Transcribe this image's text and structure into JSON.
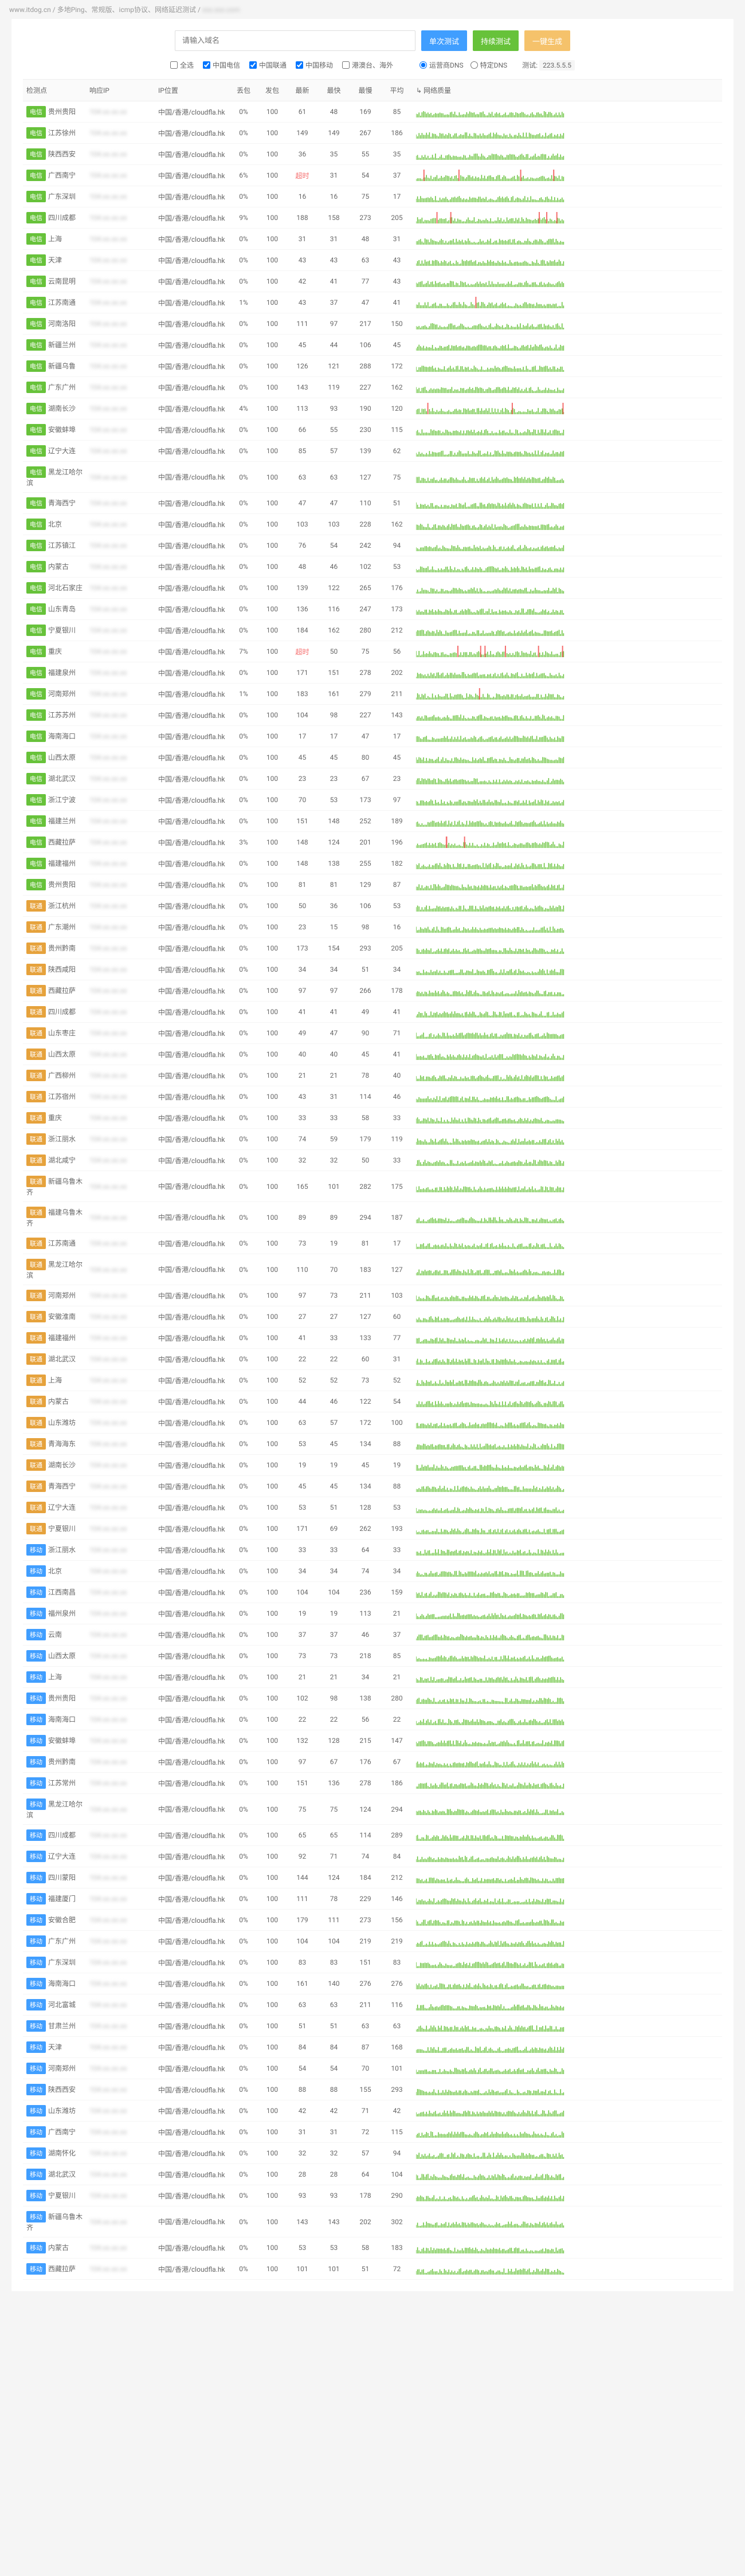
{
  "breadcrumb": {
    "site": "www.itdog.cn",
    "sep": "/",
    "p1": "多地Ping、常规版、icmp协议、网络延迟测试",
    "p2": "blurred"
  },
  "search": {
    "placeholder": "请输入域名"
  },
  "buttons": {
    "once": "单次测试",
    "cont": "持续测试",
    "share": "一键生成"
  },
  "filters": {
    "all": "全选",
    "dx": "中国电信",
    "lt": "中国联通",
    "yd": "中国移动",
    "gat": "港澳台、海外",
    "carrier_dns": "运营商DNS",
    "specific_dns": "特定DNS",
    "dns_label": "测试:",
    "dns_val": "223.5.5.5"
  },
  "headers": {
    "node": "检测点",
    "ip": "响应IP",
    "loc": "IP位置",
    "loss": "丢包",
    "sent": "发包",
    "recent": "最新",
    "fast": "最快",
    "slow": "最慢",
    "avg": "平均",
    "quality": "↳ 网络质量"
  },
  "ip_location": "中国/香港/cloudfla.hk",
  "colors": {
    "green": "#67c23a",
    "red": "#f56c6c"
  },
  "rows": [
    {
      "isp": "dx",
      "name": "贵州贵阳",
      "loss": "0%",
      "sent": 100,
      "recent": 61,
      "fast": 48,
      "slow": 169,
      "avg": 85,
      "redspikes": 0
    },
    {
      "isp": "dx",
      "name": "江苏徐州",
      "loss": "0%",
      "sent": 100,
      "recent": 149,
      "fast": 149,
      "slow": 267,
      "avg": 186,
      "redspikes": 0
    },
    {
      "isp": "dx",
      "name": "陕西西安",
      "loss": "0%",
      "sent": 100,
      "recent": 36,
      "fast": 35,
      "slow": 55,
      "avg": 35,
      "redspikes": 0
    },
    {
      "isp": "dx",
      "name": "广西南宁",
      "loss": "6%",
      "sent": 100,
      "recent": "超时",
      "fast": 31,
      "slow": 54,
      "avg": 37,
      "redspikes": 4
    },
    {
      "isp": "dx",
      "name": "广东深圳",
      "loss": "0%",
      "sent": 100,
      "recent": 16,
      "fast": 16,
      "slow": 75,
      "avg": 17,
      "redspikes": 0
    },
    {
      "isp": "dx",
      "name": "四川成都",
      "loss": "9%",
      "sent": 100,
      "recent": 188,
      "fast": 158,
      "slow": 273,
      "avg": 205,
      "redspikes": 5
    },
    {
      "isp": "dx",
      "name": "上海",
      "loss": "0%",
      "sent": 100,
      "recent": 31,
      "fast": 31,
      "slow": 48,
      "avg": 31,
      "redspikes": 0
    },
    {
      "isp": "dx",
      "name": "天津",
      "loss": "0%",
      "sent": 100,
      "recent": 43,
      "fast": 43,
      "slow": 63,
      "avg": 43,
      "redspikes": 0
    },
    {
      "isp": "dx",
      "name": "云南昆明",
      "loss": "0%",
      "sent": 100,
      "recent": 42,
      "fast": 41,
      "slow": 77,
      "avg": 43,
      "redspikes": 0
    },
    {
      "isp": "dx",
      "name": "江苏南通",
      "loss": "1%",
      "sent": 100,
      "recent": 43,
      "fast": 37,
      "slow": 47,
      "avg": 41,
      "redspikes": 1
    },
    {
      "isp": "dx",
      "name": "河南洛阳",
      "loss": "0%",
      "sent": 100,
      "recent": 111,
      "fast": 97,
      "slow": 217,
      "avg": 150,
      "redspikes": 0
    },
    {
      "isp": "dx",
      "name": "新疆兰州",
      "loss": "0%",
      "sent": 100,
      "recent": 45,
      "fast": 44,
      "slow": 106,
      "avg": 45,
      "redspikes": 0
    },
    {
      "isp": "dx",
      "name": "新疆乌鲁",
      "loss": "0%",
      "sent": 100,
      "recent": 126,
      "fast": 121,
      "slow": 288,
      "avg": 172,
      "redspikes": 0
    },
    {
      "isp": "dx",
      "name": "广东广州",
      "loss": "0%",
      "sent": 100,
      "recent": 143,
      "fast": 119,
      "slow": 227,
      "avg": 162,
      "redspikes": 0
    },
    {
      "isp": "dx",
      "name": "湖南长沙",
      "loss": "4%",
      "sent": 100,
      "recent": 113,
      "fast": 93,
      "slow": 190,
      "avg": 120,
      "redspikes": 3
    },
    {
      "isp": "dx",
      "name": "安徽蚌埠",
      "loss": "0%",
      "sent": 100,
      "recent": 66,
      "fast": 55,
      "slow": 230,
      "avg": 115,
      "redspikes": 0
    },
    {
      "isp": "dx",
      "name": "辽宁大连",
      "loss": "0%",
      "sent": 100,
      "recent": 85,
      "fast": 57,
      "slow": 139,
      "avg": 62,
      "redspikes": 0
    },
    {
      "isp": "dx",
      "name": "黑龙江哈尔滨",
      "loss": "0%",
      "sent": 100,
      "recent": 63,
      "fast": 63,
      "slow": 127,
      "avg": 75,
      "redspikes": 0
    },
    {
      "isp": "dx",
      "name": "青海西宁",
      "loss": "0%",
      "sent": 100,
      "recent": 47,
      "fast": 47,
      "slow": 110,
      "avg": 51,
      "redspikes": 0
    },
    {
      "isp": "dx",
      "name": "北京",
      "loss": "0%",
      "sent": 100,
      "recent": 103,
      "fast": 103,
      "slow": 228,
      "avg": 162,
      "redspikes": 0
    },
    {
      "isp": "dx",
      "name": "江苏镇江",
      "loss": "0%",
      "sent": 100,
      "recent": 76,
      "fast": 54,
      "slow": 242,
      "avg": 94,
      "redspikes": 0
    },
    {
      "isp": "dx",
      "name": "内蒙古",
      "loss": "0%",
      "sent": 100,
      "recent": 48,
      "fast": 46,
      "slow": 102,
      "avg": 53,
      "redspikes": 0
    },
    {
      "isp": "dx",
      "name": "河北石家庄",
      "loss": "0%",
      "sent": 100,
      "recent": 139,
      "fast": 122,
      "slow": 265,
      "avg": 176,
      "redspikes": 0
    },
    {
      "isp": "dx",
      "name": "山东青岛",
      "loss": "0%",
      "sent": 100,
      "recent": 136,
      "fast": 116,
      "slow": 247,
      "avg": 173,
      "redspikes": 0
    },
    {
      "isp": "dx",
      "name": "宁夏银川",
      "loss": "0%",
      "sent": 100,
      "recent": 184,
      "fast": 162,
      "slow": 280,
      "avg": 212,
      "redspikes": 0
    },
    {
      "isp": "dx",
      "name": "重庆",
      "loss": "7%",
      "sent": 100,
      "recent": "超时",
      "fast": 50,
      "slow": 75,
      "avg": 56,
      "redspikes": 6
    },
    {
      "isp": "dx",
      "name": "福建泉州",
      "loss": "0%",
      "sent": 100,
      "recent": 171,
      "fast": 151,
      "slow": 278,
      "avg": 202,
      "redspikes": 0
    },
    {
      "isp": "dx",
      "name": "河南郑州",
      "loss": "1%",
      "sent": 100,
      "recent": 183,
      "fast": 161,
      "slow": 279,
      "avg": 211,
      "redspikes": 1
    },
    {
      "isp": "dx",
      "name": "江苏苏州",
      "loss": "0%",
      "sent": 100,
      "recent": 104,
      "fast": 98,
      "slow": 227,
      "avg": 143,
      "redspikes": 0
    },
    {
      "isp": "dx",
      "name": "海南海口",
      "loss": "0%",
      "sent": 100,
      "recent": 17,
      "fast": 17,
      "slow": 47,
      "avg": 17,
      "redspikes": 0
    },
    {
      "isp": "dx",
      "name": "山西太原",
      "loss": "0%",
      "sent": 100,
      "recent": 45,
      "fast": 45,
      "slow": 80,
      "avg": 45,
      "redspikes": 0
    },
    {
      "isp": "dx",
      "name": "湖北武汉",
      "loss": "0%",
      "sent": 100,
      "recent": 23,
      "fast": 23,
      "slow": 67,
      "avg": 23,
      "redspikes": 0
    },
    {
      "isp": "dx",
      "name": "浙江宁波",
      "loss": "0%",
      "sent": 100,
      "recent": 70,
      "fast": 53,
      "slow": 173,
      "avg": 97,
      "redspikes": 0
    },
    {
      "isp": "dx",
      "name": "福建兰州",
      "loss": "0%",
      "sent": 100,
      "recent": 151,
      "fast": 148,
      "slow": 252,
      "avg": 189,
      "redspikes": 0
    },
    {
      "isp": "dx",
      "name": "西藏拉萨",
      "loss": "3%",
      "sent": 100,
      "recent": 148,
      "fast": 124,
      "slow": 201,
      "avg": 196,
      "redspikes": 3
    },
    {
      "isp": "dx",
      "name": "福建福州",
      "loss": "0%",
      "sent": 100,
      "recent": 148,
      "fast": 138,
      "slow": 255,
      "avg": 182,
      "redspikes": 0
    },
    {
      "isp": "dx",
      "name": "贵州贵阳",
      "loss": "0%",
      "sent": 100,
      "recent": 81,
      "fast": 81,
      "slow": 129,
      "avg": 87,
      "redspikes": 0
    },
    {
      "isp": "lt",
      "name": "浙江杭州",
      "loss": "0%",
      "sent": 100,
      "recent": 50,
      "fast": 36,
      "slow": 106,
      "avg": 53,
      "redspikes": 0
    },
    {
      "isp": "lt",
      "name": "广东潮州",
      "loss": "0%",
      "sent": 100,
      "recent": 23,
      "fast": 15,
      "slow": 98,
      "avg": 16,
      "redspikes": 0
    },
    {
      "isp": "lt",
      "name": "贵州黔南",
      "loss": "0%",
      "sent": 100,
      "recent": 173,
      "fast": 154,
      "slow": 293,
      "avg": 205,
      "redspikes": 0
    },
    {
      "isp": "lt",
      "name": "陕西咸阳",
      "loss": "0%",
      "sent": 100,
      "recent": 34,
      "fast": 34,
      "slow": 51,
      "avg": 34,
      "redspikes": 0
    },
    {
      "isp": "lt",
      "name": "西藏拉萨",
      "loss": "0%",
      "sent": 100,
      "recent": 97,
      "fast": 97,
      "slow": 266,
      "avg": 178,
      "redspikes": 0
    },
    {
      "isp": "lt",
      "name": "四川成都",
      "loss": "0%",
      "sent": 100,
      "recent": 41,
      "fast": 41,
      "slow": 49,
      "avg": 41,
      "redspikes": 0
    },
    {
      "isp": "lt",
      "name": "山东枣庄",
      "loss": "0%",
      "sent": 100,
      "recent": 49,
      "fast": 47,
      "slow": 90,
      "avg": 71,
      "redspikes": 0
    },
    {
      "isp": "lt",
      "name": "山西太原",
      "loss": "0%",
      "sent": 100,
      "recent": 40,
      "fast": 40,
      "slow": 45,
      "avg": 41,
      "redspikes": 0
    },
    {
      "isp": "lt",
      "name": "广西柳州",
      "loss": "0%",
      "sent": 100,
      "recent": 21,
      "fast": 21,
      "slow": 78,
      "avg": 40,
      "redspikes": 0
    },
    {
      "isp": "lt",
      "name": "江苏宿州",
      "loss": "0%",
      "sent": 100,
      "recent": 43,
      "fast": 31,
      "slow": 114,
      "avg": 46,
      "redspikes": 0
    },
    {
      "isp": "lt",
      "name": "重庆",
      "loss": "0%",
      "sent": 100,
      "recent": 33,
      "fast": 33,
      "slow": 58,
      "avg": 33,
      "redspikes": 0
    },
    {
      "isp": "lt",
      "name": "浙江丽水",
      "loss": "0%",
      "sent": 100,
      "recent": 74,
      "fast": 59,
      "slow": 179,
      "avg": 119,
      "redspikes": 0
    },
    {
      "isp": "lt",
      "name": "湖北咸宁",
      "loss": "0%",
      "sent": 100,
      "recent": 32,
      "fast": 32,
      "slow": 50,
      "avg": 33,
      "redspikes": 0
    },
    {
      "isp": "lt",
      "name": "新疆乌鲁木齐",
      "loss": "0%",
      "sent": 100,
      "recent": 165,
      "fast": 101,
      "slow": 282,
      "avg": 175,
      "redspikes": 0
    },
    {
      "isp": "lt",
      "name": "福建乌鲁木齐",
      "loss": "0%",
      "sent": 100,
      "recent": 89,
      "fast": 89,
      "slow": 294,
      "avg": 187,
      "redspikes": 0
    },
    {
      "isp": "lt",
      "name": "江苏南通",
      "loss": "0%",
      "sent": 100,
      "recent": 73,
      "fast": 19,
      "slow": 81,
      "avg": 17,
      "redspikes": 0
    },
    {
      "isp": "lt",
      "name": "黑龙江哈尔滨",
      "loss": "0%",
      "sent": 100,
      "recent": 110,
      "fast": 70,
      "slow": 183,
      "avg": 127,
      "redspikes": 0
    },
    {
      "isp": "lt",
      "name": "河南郑州",
      "loss": "0%",
      "sent": 100,
      "recent": 97,
      "fast": 73,
      "slow": 211,
      "avg": 103,
      "redspikes": 0
    },
    {
      "isp": "lt",
      "name": "安徽淮南",
      "loss": "0%",
      "sent": 100,
      "recent": 27,
      "fast": 27,
      "slow": 127,
      "avg": 60,
      "redspikes": 0
    },
    {
      "isp": "lt",
      "name": "福建福州",
      "loss": "0%",
      "sent": 100,
      "recent": 41,
      "fast": 33,
      "slow": 133,
      "avg": 77,
      "redspikes": 0
    },
    {
      "isp": "lt",
      "name": "湖北武汉",
      "loss": "0%",
      "sent": 100,
      "recent": 22,
      "fast": 22,
      "slow": 60,
      "avg": 31,
      "redspikes": 0
    },
    {
      "isp": "lt",
      "name": "上海",
      "loss": "0%",
      "sent": 100,
      "recent": 52,
      "fast": 52,
      "slow": 73,
      "avg": 52,
      "redspikes": 0
    },
    {
      "isp": "lt",
      "name": "内蒙古",
      "loss": "0%",
      "sent": 100,
      "recent": 44,
      "fast": 46,
      "slow": 122,
      "avg": 54,
      "redspikes": 0
    },
    {
      "isp": "lt",
      "name": "山东潍坊",
      "loss": "0%",
      "sent": 100,
      "recent": 63,
      "fast": 57,
      "slow": 172,
      "avg": 100,
      "redspikes": 0
    },
    {
      "isp": "lt",
      "name": "青海海东",
      "loss": "0%",
      "sent": 100,
      "recent": 53,
      "fast": 45,
      "slow": 134,
      "avg": 88,
      "redspikes": 0
    },
    {
      "isp": "lt",
      "name": "湖南长沙",
      "loss": "0%",
      "sent": 100,
      "recent": 19,
      "fast": 19,
      "slow": 45,
      "avg": 19,
      "redspikes": 0
    },
    {
      "isp": "lt",
      "name": "青海西宁",
      "loss": "0%",
      "sent": 100,
      "recent": 45,
      "fast": 45,
      "slow": 134,
      "avg": 88,
      "redspikes": 0
    },
    {
      "isp": "lt",
      "name": "辽宁大连",
      "loss": "0%",
      "sent": 100,
      "recent": 53,
      "fast": 51,
      "slow": 128,
      "avg": 53,
      "redspikes": 0
    },
    {
      "isp": "lt",
      "name": "宁夏银川",
      "loss": "0%",
      "sent": 100,
      "recent": 171,
      "fast": 69,
      "slow": 262,
      "avg": 193,
      "redspikes": 0
    },
    {
      "isp": "yd",
      "name": "浙江丽水",
      "loss": "0%",
      "sent": 100,
      "recent": 33,
      "fast": 33,
      "slow": 64,
      "avg": 33,
      "redspikes": 0
    },
    {
      "isp": "yd",
      "name": "北京",
      "loss": "0%",
      "sent": 100,
      "recent": 34,
      "fast": 34,
      "slow": 74,
      "avg": 34,
      "redspikes": 0
    },
    {
      "isp": "yd",
      "name": "江西南昌",
      "loss": "0%",
      "sent": 100,
      "recent": 104,
      "fast": 104,
      "slow": 236,
      "avg": 159,
      "redspikes": 0
    },
    {
      "isp": "yd",
      "name": "福州泉州",
      "loss": "0%",
      "sent": 100,
      "recent": 19,
      "fast": 19,
      "slow": 113,
      "avg": 21,
      "redspikes": 0
    },
    {
      "isp": "yd",
      "name": "云南",
      "loss": "0%",
      "sent": 100,
      "recent": 37,
      "fast": 37,
      "slow": 46,
      "avg": 37,
      "redspikes": 0
    },
    {
      "isp": "yd",
      "name": "山西太原",
      "loss": "0%",
      "sent": 100,
      "recent": 73,
      "fast": 73,
      "slow": 218,
      "avg": 85,
      "redspikes": 0
    },
    {
      "isp": "yd",
      "name": "上海",
      "loss": "0%",
      "sent": 100,
      "recent": 21,
      "fast": 21,
      "slow": 34,
      "avg": 21,
      "redspikes": 0
    },
    {
      "isp": "yd",
      "name": "贵州贵阳",
      "loss": "0%",
      "sent": 100,
      "recent": 102,
      "fast": 98,
      "slow": 138,
      "avg": 280,
      "redspikes": 0
    },
    {
      "isp": "yd",
      "name": "海南海口",
      "loss": "0%",
      "sent": 100,
      "recent": 22,
      "fast": 22,
      "slow": 56,
      "avg": 22,
      "redspikes": 0
    },
    {
      "isp": "yd",
      "name": "安徽蚌埠",
      "loss": "0%",
      "sent": 100,
      "recent": 132,
      "fast": 128,
      "slow": 215,
      "avg": 147,
      "redspikes": 0
    },
    {
      "isp": "yd",
      "name": "贵州黔南",
      "loss": "0%",
      "sent": 100,
      "recent": 97,
      "fast": 67,
      "slow": 176,
      "avg": 67,
      "redspikes": 0
    },
    {
      "isp": "yd",
      "name": "江苏常州",
      "loss": "0%",
      "sent": 100,
      "recent": 151,
      "fast": 136,
      "slow": 278,
      "avg": 186,
      "redspikes": 0
    },
    {
      "isp": "yd",
      "name": "黑龙江哈尔滨",
      "loss": "0%",
      "sent": 100,
      "recent": 75,
      "fast": 75,
      "slow": 124,
      "avg": 294,
      "redspikes": 0
    },
    {
      "isp": "yd",
      "name": "四川成都",
      "loss": "0%",
      "sent": 100,
      "recent": 65,
      "fast": 65,
      "slow": 114,
      "avg": 289,
      "redspikes": 0
    },
    {
      "isp": "yd",
      "name": "辽宁大连",
      "loss": "0%",
      "sent": 100,
      "recent": 92,
      "fast": 71,
      "slow": 74,
      "avg": 84,
      "redspikes": 0
    },
    {
      "isp": "yd",
      "name": "四川蒙阳",
      "loss": "0%",
      "sent": 100,
      "recent": 144,
      "fast": 124,
      "slow": 184,
      "avg": 212,
      "redspikes": 0
    },
    {
      "isp": "yd",
      "name": "福建厦门",
      "loss": "0%",
      "sent": 100,
      "recent": 111,
      "fast": 78,
      "slow": 229,
      "avg": 146,
      "redspikes": 0
    },
    {
      "isp": "yd",
      "name": "安徽合肥",
      "loss": "0%",
      "sent": 100,
      "recent": 179,
      "fast": 111,
      "slow": 273,
      "avg": 156,
      "redspikes": 0
    },
    {
      "isp": "yd",
      "name": "广东广州",
      "loss": "0%",
      "sent": 100,
      "recent": 104,
      "fast": 104,
      "slow": 219,
      "avg": 219,
      "redspikes": 0
    },
    {
      "isp": "yd",
      "name": "广东深圳",
      "loss": "0%",
      "sent": 100,
      "recent": 83,
      "fast": 83,
      "slow": 151,
      "avg": 83,
      "redspikes": 0
    },
    {
      "isp": "yd",
      "name": "海南海口",
      "loss": "0%",
      "sent": 100,
      "recent": 161,
      "fast": 140,
      "slow": 276,
      "avg": 276,
      "redspikes": 0
    },
    {
      "isp": "yd",
      "name": "河北富城",
      "loss": "0%",
      "sent": 100,
      "recent": 63,
      "fast": 63,
      "slow": 211,
      "avg": 116,
      "redspikes": 0
    },
    {
      "isp": "yd",
      "name": "甘肃兰州",
      "loss": "0%",
      "sent": 100,
      "recent": 51,
      "fast": 51,
      "slow": 63,
      "avg": 63,
      "redspikes": 0
    },
    {
      "isp": "yd",
      "name": "天津",
      "loss": "0%",
      "sent": 100,
      "recent": 84,
      "fast": 84,
      "slow": 87,
      "avg": 168,
      "redspikes": 0
    },
    {
      "isp": "yd",
      "name": "河南郑州",
      "loss": "0%",
      "sent": 100,
      "recent": 54,
      "fast": 54,
      "slow": 70,
      "avg": 101,
      "redspikes": 0
    },
    {
      "isp": "yd",
      "name": "陕西西安",
      "loss": "0%",
      "sent": 100,
      "recent": 88,
      "fast": 88,
      "slow": 155,
      "avg": 293,
      "redspikes": 0
    },
    {
      "isp": "yd",
      "name": "山东潍坊",
      "loss": "0%",
      "sent": 100,
      "recent": 42,
      "fast": 42,
      "slow": 71,
      "avg": 42,
      "redspikes": 0
    },
    {
      "isp": "yd",
      "name": "广西南宁",
      "loss": "0%",
      "sent": 100,
      "recent": 31,
      "fast": 31,
      "slow": 72,
      "avg": 115,
      "redspikes": 0
    },
    {
      "isp": "yd",
      "name": "湖南怀化",
      "loss": "0%",
      "sent": 100,
      "recent": 32,
      "fast": 32,
      "slow": 57,
      "avg": 94,
      "redspikes": 0
    },
    {
      "isp": "yd",
      "name": "湖北武汉",
      "loss": "0%",
      "sent": 100,
      "recent": 28,
      "fast": 28,
      "slow": 64,
      "avg": 104,
      "redspikes": 0
    },
    {
      "isp": "yd",
      "name": "宁夏银川",
      "loss": "0%",
      "sent": 100,
      "recent": 93,
      "fast": 93,
      "slow": 178,
      "avg": 290,
      "redspikes": 0
    },
    {
      "isp": "yd",
      "name": "新疆乌鲁木齐",
      "loss": "0%",
      "sent": 100,
      "recent": 143,
      "fast": 143,
      "slow": 202,
      "avg": 302,
      "redspikes": 0
    },
    {
      "isp": "yd",
      "name": "内蒙古",
      "loss": "0%",
      "sent": 100,
      "recent": 53,
      "fast": 53,
      "slow": 58,
      "avg": 183,
      "redspikes": 0
    },
    {
      "isp": "yd",
      "name": "西藏拉萨",
      "loss": "0%",
      "sent": 100,
      "recent": 101,
      "fast": 101,
      "slow": 51,
      "avg": 72,
      "redspikes": 0
    }
  ]
}
